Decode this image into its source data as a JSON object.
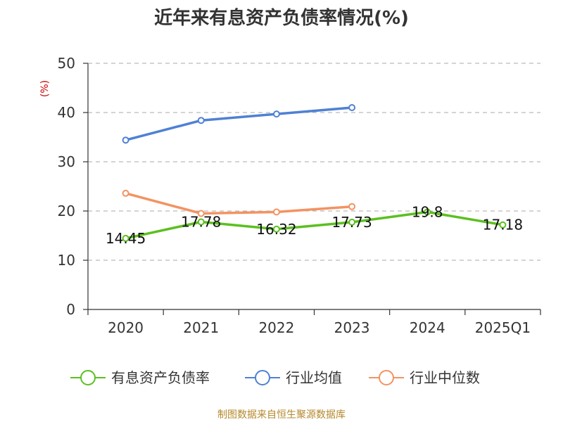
{
  "chart_data": {
    "type": "line",
    "title": "近年来有息资产负债率情况(%)",
    "ylabel": "(%)",
    "ylim": [
      0,
      50
    ],
    "yticks": [
      0,
      10,
      20,
      30,
      40,
      50
    ],
    "categories": [
      "2020",
      "2021",
      "2022",
      "2023",
      "2024",
      "2025Q1"
    ],
    "grid": true,
    "legend_position": "bottom",
    "series": [
      {
        "name": "有息资产负债率",
        "color": "#5cc020",
        "values": [
          14.45,
          17.78,
          16.32,
          17.73,
          19.8,
          17.18
        ],
        "labels": [
          "14.45",
          "17.78",
          "16.32",
          "17.73",
          "19.8",
          "17.18"
        ]
      },
      {
        "name": "行业均值",
        "color": "#4f81d4",
        "values": [
          34.4,
          38.4,
          39.7,
          41.0,
          null,
          null
        ]
      },
      {
        "name": "行业中位数",
        "color": "#f39362",
        "values": [
          23.6,
          19.5,
          19.8,
          20.9,
          null,
          null
        ]
      }
    ],
    "source": "制图数据来自恒生聚源数据库"
  },
  "colors": {
    "axis": "#333333",
    "grid": "#aaaaaa",
    "unit": "#cc0000",
    "source": "#b5882c"
  }
}
